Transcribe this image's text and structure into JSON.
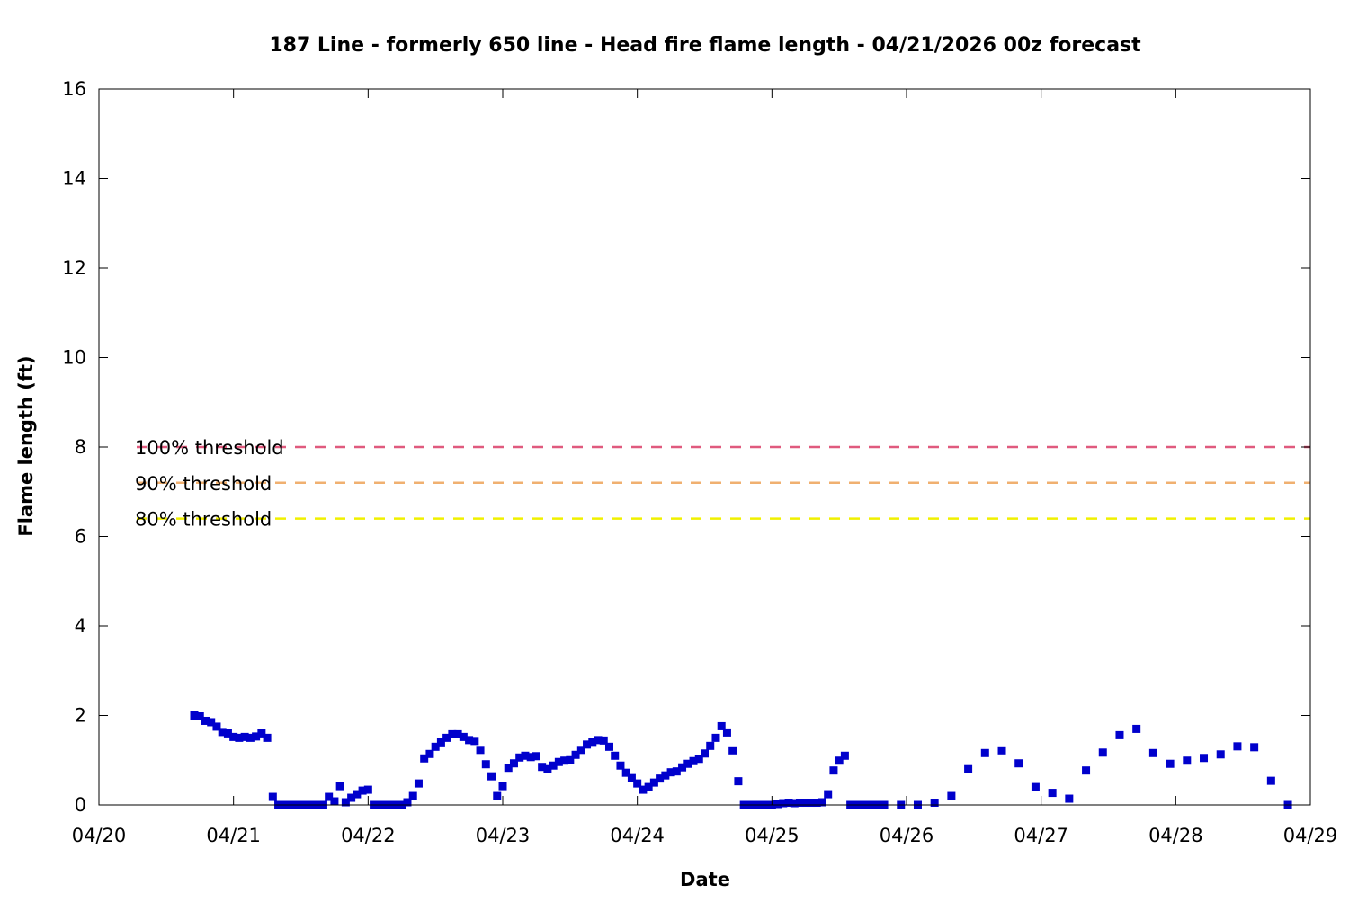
{
  "chart_data": {
    "type": "scatter",
    "title": "187 Line - formerly 650 line - Head fire flame length - 04/21/2026 00z forecast",
    "xlabel": "Date",
    "ylabel": "Flame length (ft)",
    "x_ticks": [
      "04/20",
      "04/21",
      "04/22",
      "04/23",
      "04/24",
      "04/25",
      "04/26",
      "04/27",
      "04/28",
      "04/29"
    ],
    "y_ticks": [
      "0",
      "2",
      "4",
      "6",
      "8",
      "10",
      "12",
      "14",
      "16"
    ],
    "xlim": [
      "04/20 00:00",
      "04/29 00:00"
    ],
    "ylim": [
      0,
      16
    ],
    "grid": false,
    "legend_position": "left",
    "thresholds": [
      {
        "label": "100% threshold",
        "value": 8.0,
        "color": "#e05a7e"
      },
      {
        "label": "90% threshold",
        "value": 7.2,
        "color": "#f0b070"
      },
      {
        "label": "80% threshold",
        "value": 6.4,
        "color": "#f0f000"
      }
    ],
    "series": [
      {
        "color": "#0000cc",
        "points": [
          [
            "04/20 17:00",
            2.0
          ],
          [
            "04/20 18:00",
            1.98
          ],
          [
            "04/20 19:00",
            1.88
          ],
          [
            "04/20 20:00",
            1.85
          ],
          [
            "04/20 21:00",
            1.75
          ],
          [
            "04/20 22:00",
            1.63
          ],
          [
            "04/20 23:00",
            1.6
          ],
          [
            "04/21 00:00",
            1.52
          ],
          [
            "04/21 01:00",
            1.5
          ],
          [
            "04/21 02:00",
            1.52
          ],
          [
            "04/21 03:00",
            1.5
          ],
          [
            "04/21 04:00",
            1.53
          ],
          [
            "04/21 05:00",
            1.6
          ],
          [
            "04/21 06:00",
            1.5
          ],
          [
            "04/21 07:00",
            0.18
          ],
          [
            "04/21 08:00",
            0.0
          ],
          [
            "04/21 09:00",
            0.0
          ],
          [
            "04/21 10:00",
            0.0
          ],
          [
            "04/21 11:00",
            0.0
          ],
          [
            "04/21 12:00",
            0.0
          ],
          [
            "04/21 13:00",
            0.0
          ],
          [
            "04/21 14:00",
            0.0
          ],
          [
            "04/21 15:00",
            0.0
          ],
          [
            "04/21 16:00",
            0.0
          ],
          [
            "04/21 17:00",
            0.18
          ],
          [
            "04/21 18:00",
            0.08
          ],
          [
            "04/21 19:00",
            0.42
          ],
          [
            "04/21 20:00",
            0.06
          ],
          [
            "04/21 21:00",
            0.16
          ],
          [
            "04/21 22:00",
            0.24
          ],
          [
            "04/21 23:00",
            0.32
          ],
          [
            "04/22 00:00",
            0.34
          ],
          [
            "04/22 01:00",
            0.0
          ],
          [
            "04/22 02:00",
            0.0
          ],
          [
            "04/22 03:00",
            0.0
          ],
          [
            "04/22 04:00",
            0.0
          ],
          [
            "04/22 05:00",
            0.0
          ],
          [
            "04/22 06:00",
            0.0
          ],
          [
            "04/22 07:00",
            0.06
          ],
          [
            "04/22 08:00",
            0.2
          ],
          [
            "04/22 09:00",
            0.48
          ],
          [
            "04/22 10:00",
            1.04
          ],
          [
            "04/22 11:00",
            1.14
          ],
          [
            "04/22 12:00",
            1.3
          ],
          [
            "04/22 13:00",
            1.4
          ],
          [
            "04/22 14:00",
            1.5
          ],
          [
            "04/22 15:00",
            1.58
          ],
          [
            "04/22 16:00",
            1.58
          ],
          [
            "04/22 17:00",
            1.52
          ],
          [
            "04/22 18:00",
            1.45
          ],
          [
            "04/22 19:00",
            1.43
          ],
          [
            "04/22 20:00",
            1.23
          ],
          [
            "04/22 21:00",
            0.91
          ],
          [
            "04/22 22:00",
            0.64
          ],
          [
            "04/22 23:00",
            0.2
          ],
          [
            "04/23 00:00",
            0.42
          ],
          [
            "04/23 01:00",
            0.83
          ],
          [
            "04/23 02:00",
            0.93
          ],
          [
            "04/23 03:00",
            1.06
          ],
          [
            "04/23 04:00",
            1.1
          ],
          [
            "04/23 05:00",
            1.07
          ],
          [
            "04/23 06:00",
            1.09
          ],
          [
            "04/23 07:00",
            0.85
          ],
          [
            "04/23 08:00",
            0.8
          ],
          [
            "04/23 09:00",
            0.88
          ],
          [
            "04/23 10:00",
            0.96
          ],
          [
            "04/23 11:00",
            0.99
          ],
          [
            "04/23 12:00",
            1.0
          ],
          [
            "04/23 13:00",
            1.12
          ],
          [
            "04/23 14:00",
            1.23
          ],
          [
            "04/23 15:00",
            1.35
          ],
          [
            "04/23 16:00",
            1.41
          ],
          [
            "04/23 17:00",
            1.45
          ],
          [
            "04/23 18:00",
            1.44
          ],
          [
            "04/23 19:00",
            1.3
          ],
          [
            "04/23 20:00",
            1.1
          ],
          [
            "04/23 21:00",
            0.88
          ],
          [
            "04/23 22:00",
            0.72
          ],
          [
            "04/23 23:00",
            0.6
          ],
          [
            "04/24 00:00",
            0.48
          ],
          [
            "04/24 01:00",
            0.34
          ],
          [
            "04/24 02:00",
            0.4
          ],
          [
            "04/24 03:00",
            0.5
          ],
          [
            "04/24 04:00",
            0.59
          ],
          [
            "04/24 05:00",
            0.66
          ],
          [
            "04/24 06:00",
            0.73
          ],
          [
            "04/24 07:00",
            0.75
          ],
          [
            "04/24 08:00",
            0.84
          ],
          [
            "04/24 09:00",
            0.92
          ],
          [
            "04/24 10:00",
            0.98
          ],
          [
            "04/24 11:00",
            1.03
          ],
          [
            "04/24 12:00",
            1.15
          ],
          [
            "04/24 13:00",
            1.32
          ],
          [
            "04/24 14:00",
            1.5
          ],
          [
            "04/24 15:00",
            1.76
          ],
          [
            "04/24 16:00",
            1.62
          ],
          [
            "04/24 17:00",
            1.22
          ],
          [
            "04/24 18:00",
            0.53
          ],
          [
            "04/24 19:00",
            0.0
          ],
          [
            "04/24 20:00",
            0.0
          ],
          [
            "04/24 21:00",
            0.0
          ],
          [
            "04/24 22:00",
            0.0
          ],
          [
            "04/24 23:00",
            0.0
          ],
          [
            "04/25 00:00",
            0.0
          ],
          [
            "04/25 01:00",
            0.02
          ],
          [
            "04/25 02:00",
            0.04
          ],
          [
            "04/25 03:00",
            0.05
          ],
          [
            "04/25 04:00",
            0.04
          ],
          [
            "04/25 05:00",
            0.05
          ],
          [
            "04/25 06:00",
            0.05
          ],
          [
            "04/25 07:00",
            0.05
          ],
          [
            "04/25 08:00",
            0.05
          ],
          [
            "04/25 09:00",
            0.06
          ],
          [
            "04/25 10:00",
            0.24
          ],
          [
            "04/25 11:00",
            0.77
          ],
          [
            "04/25 12:00",
            0.99
          ],
          [
            "04/25 13:00",
            1.1
          ],
          [
            "04/25 14:00",
            0.0
          ],
          [
            "04/25 15:00",
            0.0
          ],
          [
            "04/25 16:00",
            0.0
          ],
          [
            "04/25 17:00",
            0.0
          ],
          [
            "04/25 18:00",
            0.0
          ],
          [
            "04/25 19:00",
            0.0
          ],
          [
            "04/25 20:00",
            0.0
          ],
          [
            "04/25 23:00",
            0.0
          ],
          [
            "04/26 02:00",
            0.0
          ],
          [
            "04/26 05:00",
            0.05
          ],
          [
            "04/26 08:00",
            0.2
          ],
          [
            "04/26 11:00",
            0.8
          ],
          [
            "04/26 14:00",
            1.16
          ],
          [
            "04/26 17:00",
            1.22
          ],
          [
            "04/26 20:00",
            0.93
          ],
          [
            "04/26 23:00",
            0.4
          ],
          [
            "04/27 02:00",
            0.27
          ],
          [
            "04/27 05:00",
            0.14
          ],
          [
            "04/27 08:00",
            0.77
          ],
          [
            "04/27 11:00",
            1.17
          ],
          [
            "04/27 14:00",
            1.56
          ],
          [
            "04/27 17:00",
            1.7
          ],
          [
            "04/27 20:00",
            1.16
          ],
          [
            "04/27 23:00",
            0.92
          ],
          [
            "04/28 02:00",
            0.99
          ],
          [
            "04/28 05:00",
            1.05
          ],
          [
            "04/28 08:00",
            1.13
          ],
          [
            "04/28 11:00",
            1.31
          ],
          [
            "04/28 14:00",
            1.29
          ],
          [
            "04/28 17:00",
            0.54
          ],
          [
            "04/28 20:00",
            0.0
          ]
        ]
      }
    ]
  }
}
